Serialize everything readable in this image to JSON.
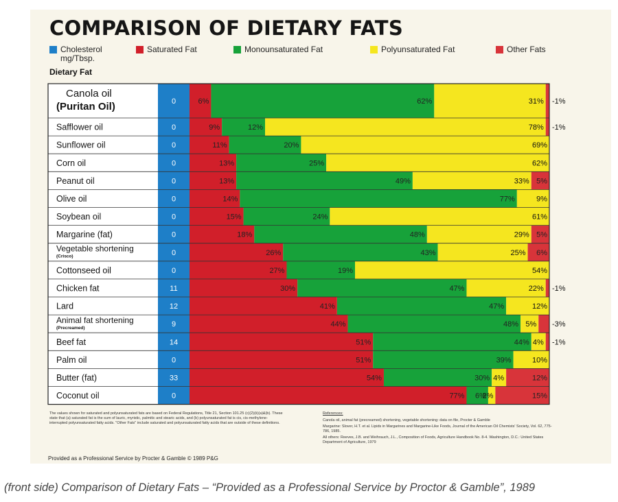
{
  "chart_data": {
    "type": "bar",
    "stacked": true,
    "orientation": "horizontal",
    "title": "COMPARISON OF DIETARY FATS",
    "row_header": "Dietary Fat",
    "legend": [
      {
        "key": "cholesterol",
        "label": "Cholesterol",
        "label2": "mg/Tbsp.",
        "color": "#1e7fc8"
      },
      {
        "key": "saturated",
        "label": "Saturated Fat",
        "color": "#d11f2a"
      },
      {
        "key": "mono",
        "label": "Monounsaturated Fat",
        "color": "#17a23a"
      },
      {
        "key": "poly",
        "label": "Polyunsaturated Fat",
        "color": "#f5e61f"
      },
      {
        "key": "other",
        "label": "Other Fats",
        "color": "#d8343a"
      }
    ],
    "rows": [
      {
        "name": "Canola oil",
        "subname": "(Puritan Oil)",
        "cholesterol": "0",
        "saturated": 6,
        "mono": 62,
        "poly": 31,
        "other": 1,
        "labels": {
          "saturated": "6%",
          "mono": "62%",
          "poly": "31%"
        },
        "outside": "-1%"
      },
      {
        "name": "Safflower oil",
        "cholesterol": "0",
        "saturated": 9,
        "mono": 12,
        "poly": 78,
        "other": 1,
        "labels": {
          "saturated": "9%",
          "mono": "12%",
          "poly": "78%"
        },
        "outside": "-1%"
      },
      {
        "name": "Sunflower oil",
        "cholesterol": "0",
        "saturated": 11,
        "mono": 20,
        "poly": 69,
        "other": 0,
        "labels": {
          "saturated": "11%",
          "mono": "20%",
          "poly": "69%"
        }
      },
      {
        "name": "Corn oil",
        "cholesterol": "0",
        "saturated": 13,
        "mono": 25,
        "poly": 62,
        "other": 0,
        "labels": {
          "saturated": "13%",
          "mono": "25%",
          "poly": "62%"
        }
      },
      {
        "name": "Peanut oil",
        "cholesterol": "0",
        "saturated": 13,
        "mono": 49,
        "poly": 33,
        "other": 5,
        "labels": {
          "saturated": "13%",
          "mono": "49%",
          "poly": "33%",
          "other": "5%"
        }
      },
      {
        "name": "Olive oil",
        "cholesterol": "0",
        "saturated": 14,
        "mono": 77,
        "poly": 9,
        "other": 0,
        "labels": {
          "saturated": "14%",
          "mono": "77%",
          "poly": "9%"
        }
      },
      {
        "name": "Soybean oil",
        "cholesterol": "0",
        "saturated": 15,
        "mono": 24,
        "poly": 61,
        "other": 0,
        "labels": {
          "saturated": "15%",
          "mono": "24%",
          "poly": "61%"
        }
      },
      {
        "name": "Margarine (fat)",
        "cholesterol": "0",
        "saturated": 18,
        "mono": 48,
        "poly": 29,
        "other": 5,
        "labels": {
          "saturated": "18%",
          "mono": "48%",
          "poly": "29%",
          "other": "5%"
        }
      },
      {
        "name": "Vegetable shortening",
        "subname": "(Crisco)",
        "cholesterol": "0",
        "saturated": 26,
        "mono": 43,
        "poly": 25,
        "other": 6,
        "labels": {
          "saturated": "26%",
          "mono": "43%",
          "poly": "25%",
          "other": "6%"
        }
      },
      {
        "name": "Cottonseed oil",
        "cholesterol": "0",
        "saturated": 27,
        "mono": 19,
        "poly": 54,
        "other": 0,
        "labels": {
          "saturated": "27%",
          "mono": "19%",
          "poly": "54%"
        }
      },
      {
        "name": "Chicken fat",
        "cholesterol": "11",
        "saturated": 30,
        "mono": 47,
        "poly": 22,
        "other": 1,
        "labels": {
          "saturated": "30%",
          "mono": "47%",
          "poly": "22%"
        },
        "outside": "-1%"
      },
      {
        "name": "Lard",
        "cholesterol": "12",
        "saturated": 41,
        "mono": 47,
        "poly": 12,
        "other": 0,
        "labels": {
          "saturated": "41%",
          "mono": "47%",
          "poly": "12%"
        }
      },
      {
        "name": "Animal fat shortening",
        "subname": "(Precreamed)",
        "cholesterol": "9",
        "saturated": 44,
        "mono": 48,
        "poly": 5,
        "other": 3,
        "labels": {
          "saturated": "44%",
          "mono": "48%",
          "poly": "5%"
        },
        "outside": "-3%"
      },
      {
        "name": "Beef fat",
        "cholesterol": "14",
        "saturated": 51,
        "mono": 44,
        "poly": 4,
        "other": 1,
        "labels": {
          "saturated": "51%",
          "mono": "44%",
          "poly": "4%"
        },
        "outside": "-1%"
      },
      {
        "name": "Palm oil",
        "cholesterol": "0",
        "saturated": 51,
        "mono": 39,
        "poly": 10,
        "other": 0,
        "labels": {
          "saturated": "51%",
          "mono": "39%",
          "poly": "10%"
        }
      },
      {
        "name": "Butter (fat)",
        "cholesterol": "33",
        "saturated": 54,
        "mono": 30,
        "poly": 4,
        "other": 12,
        "labels": {
          "saturated": "54%",
          "mono": "30%",
          "poly": "4%",
          "other": "12%"
        }
      },
      {
        "name": "Coconut oil",
        "cholesterol": "0",
        "saturated": 77,
        "mono": 6,
        "poly": 2,
        "other": 15,
        "labels": {
          "saturated": "77%",
          "mono": "6%",
          "poly": "2%",
          "other": "15%"
        }
      }
    ]
  },
  "footnote": "The values shown for saturated and polyunsaturated fats are based on Federal Regulations, Title 21, Section 101.25 (c)(2)(ii)(a)&(b). These state that (a) saturated fat is the sum of lauric, myristic, palmitic and stearic acids, and (b) polyunsaturated fat is cis, cis-methylene-interrupted polyunsaturated fatty acids. \"Other Fats\" include saturated and polyunsaturated fatty acids that are outside of these definitions.",
  "references": {
    "heading": "References:",
    "lines": [
      "Canola oil, animal fat (precreamed) shortening, vegetable shortening: data on file, Procter & Gamble",
      "Margarine: Slover, H.T. et al. Lipids in Margarines and Margarine-Like Foods, Journal of the American Oil Chemists' Society, Vol. 62, 775-786, 1985.",
      "All others: Reeves, J.B. and Weihrauch, J.L., Composition of Foods, Agriculture Handbook No. 8-4. Washington, D.C.: United States Department of Agriculture, 1979"
    ]
  },
  "provided": "Provided as a Professional Service by Procter & Gamble © 1989 P&G",
  "caption": "(front side) Comparison of Dietary Fats – “Provided as a Professional Service by Proctor & Gamble”, 1989"
}
